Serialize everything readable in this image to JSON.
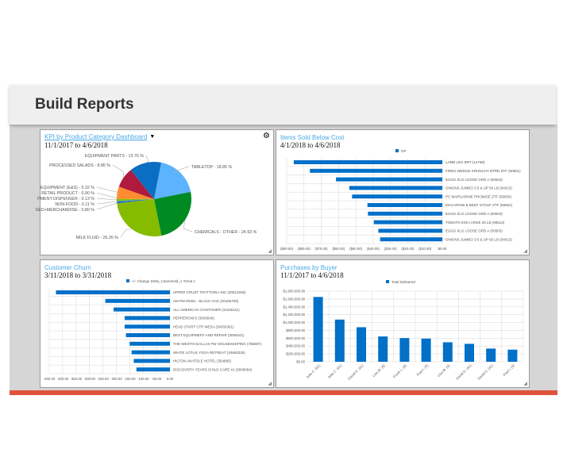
{
  "header": {
    "title": "Build Reports"
  },
  "colors": {
    "accent": "#e0533b",
    "bar": "#0070c8",
    "link": "#4aa8e8"
  },
  "panels": {
    "kpi": {
      "title": "KPI by Product Category Dashboard",
      "date": "11/1/2017 to 4/6/2018",
      "icons": [
        "filter-icon",
        "gear-icon",
        "resize-icon"
      ]
    },
    "items": {
      "title": "Items Sold Below Cost",
      "date": "4/1/2018 to 4/6/2018"
    },
    "churn": {
      "title": "Customer Churn",
      "date": "3/11/2018 to 3/31/2018"
    },
    "purchases": {
      "title": "Purchases by Buyer",
      "date": "11/1/2017 to 4/6/2018"
    }
  },
  "chart_data": [
    {
      "type": "pie",
      "slices": [
        {
          "label": "TABLETOP - 18.85 %",
          "value": 18.85,
          "color": "#5cb3ff"
        },
        {
          "label": "CHEMICALS - OTHER - 24.93 %",
          "value": 24.93,
          "color": "#008a22"
        },
        {
          "label": "MILK FLUID - 26.35 %",
          "value": 26.35,
          "color": "#86bc00"
        },
        {
          "label": "SED+MERCHANDISE - 0.80 %",
          "value": 0.8,
          "color": "#1f6fc0"
        },
        {
          "label": "NON-FOOD - 0.11 %",
          "value": 0.11,
          "color": "#5cb3ff"
        },
        {
          "label": "PMENT-DISPENSER - 0.13 %",
          "value": 0.13,
          "color": "#008a22"
        },
        {
          "label": "RETAIL PRODUCT - 0.90 %",
          "value": 0.9,
          "color": "#86bc00"
        },
        {
          "label": "EQUIPMENT (E&S) - 5.32 %",
          "value": 5.32,
          "color": "#ff8c2e"
        },
        {
          "label": "PROCESSED SALADS - 8.86 %",
          "value": 8.86,
          "color": "#b01a3e"
        },
        {
          "label": "EQUIPMENT PARTS - 13.76 %",
          "value": 13.76,
          "color": "#0a6fc2"
        }
      ]
    },
    {
      "type": "bar",
      "orientation": "horizontal",
      "legend": "GP",
      "xlim": [
        -90,
        0
      ],
      "ticks": [
        "($90.00)",
        "($80.00)",
        "($70.00)",
        "($60.00)",
        "($50.00)",
        "($40.00)",
        "($30.00)",
        "($20.00)",
        "($10.00)",
        "$0.00"
      ],
      "categories": [
        "LAMB LEG BRT (14768)",
        "FRIES WEDGE KRUNCHY BTRD ZTF (50801)",
        "EGGS XLG LOOSE GRD A (50503)",
        "ONIONS JUMBO 3.5 & UP 50 LB (04013)",
        "PC MARGARINE PROMISE ZTF (58654)",
        "MACARONI & BEEF STOUF ZTF (59591)",
        "EGGS XLG LOOSE GRD A (50503)",
        "TOMATO 6X6 LARGE 25 LB (98513)",
        "EGGS XLG LOOSE GRD A (50503)",
        "ONIONS JUMBO 3.5 & UP 50 LB (04013)"
      ],
      "values": [
        -85.9,
        -76.6,
        -61.5,
        -53.8,
        -52.2,
        -43.3,
        -43.0,
        -39.6,
        -37.0,
        -36.0
      ]
    },
    {
      "type": "bar",
      "orientation": "horizontal",
      "legend": "+/- Change Delta_CasesSold_1 Trend 1",
      "xlim": [
        -450,
        0
      ],
      "ticks": [
        "-450.00",
        "-400.00",
        "-350.00",
        "-300.00",
        "-250.00",
        "-200.00",
        "-150.00",
        "-100.00",
        "-50.00",
        "0.00"
      ],
      "categories": [
        "UPPER CRUST TRATTORIA INC (30012835)",
        "AM PM #6381 - BLACK OAK (20166759)",
        "ALL AMERICAN CONTAINER (10155111)",
        "PEPPERONI'S (3003546)",
        "HEAD START CTR      MESA (30033361)",
        "BEST EQUIPMENT AND REPAIR (3008341)",
        "THE WESTIN DALLAS FW HOUSEKEEPING (786687)",
        "WHITE LOTUS YOGA RETREAT (10693325)",
        "HILTON ANATOLE HOTEL (354895)",
        "DISCOVERY YEARS CHILD CARE #1 (3008364)"
      ],
      "values": [
        -425,
        -241,
        -210,
        -169,
        -169,
        -164,
        -150,
        -143,
        -135,
        -125
      ]
    },
    {
      "type": "bar",
      "orientation": "vertical",
      "legend": "Total Delivered",
      "ylim": [
        0,
        1800000
      ],
      "ticks": [
        "$0.00",
        "$200,000.00",
        "$400,000.00",
        "$600,000.00",
        "$800,000.00",
        "$1,000,000.00",
        "$1,200,000.00",
        "$1,400,000.00",
        "$1,600,000.00",
        "$1,800,000.00"
      ],
      "categories": [
        "Julie C. (01)",
        "Julie C. (01)",
        "David O. (41)",
        "Lisa M. (9)",
        "Frank L. (8)",
        "Paul I. (3)",
        "Lisa M. (9)",
        "David O. (41)",
        "David O. (41)",
        "Paul I. (3)"
      ],
      "values": [
        1652000,
        1075000,
        880000,
        645000,
        604000,
        591000,
        497000,
        457000,
        336000,
        309000
      ]
    }
  ]
}
